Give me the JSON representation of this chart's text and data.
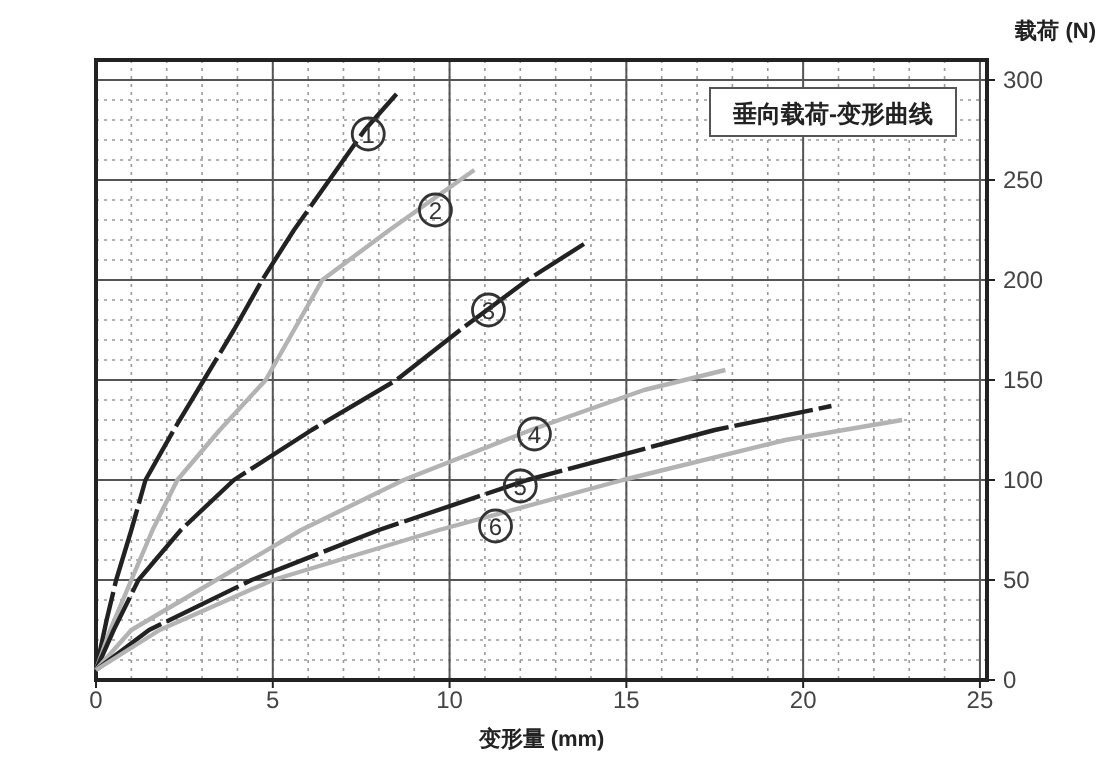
{
  "chart_data": {
    "type": "line",
    "title": "垂向载荷-变形曲线",
    "xlabel": "变形量 (mm)",
    "ylabel": "载荷 (N)",
    "xlim": [
      0,
      25.2
    ],
    "ylim": [
      0,
      310
    ],
    "xticks": [
      0,
      5,
      10,
      15,
      20,
      25
    ],
    "yticks": [
      0,
      50,
      100,
      150,
      200,
      250,
      300
    ],
    "grid": true,
    "series": [
      {
        "color": "#222222",
        "line_style": "dashed",
        "x": [
          0,
          0.3,
          0.57,
          1.0,
          1.4,
          2.2,
          3.05,
          3.9,
          4.7,
          5.6,
          6.6,
          7.6,
          8.5
        ],
        "values": [
          5,
          30,
          50,
          75,
          100,
          125,
          150,
          175,
          200,
          225,
          250,
          275,
          293
        ]
      },
      {
        "color": "#b3b3b3",
        "line_style": "solid",
        "x": [
          0,
          0.4,
          1.0,
          1.6,
          2.3,
          3.5,
          4.8,
          5.6,
          6.4,
          8.3,
          10.3,
          10.7
        ],
        "values": [
          5,
          25,
          50,
          75,
          100,
          125,
          150,
          175,
          200,
          225,
          250,
          255
        ]
      },
      {
        "color": "#222222",
        "line_style": "dashed",
        "x": [
          0,
          0.5,
          1.2,
          2.4,
          3.9,
          6.1,
          8.5,
          10.3,
          12.2,
          13.8
        ],
        "values": [
          5,
          25,
          50,
          75,
          100,
          125,
          150,
          175,
          200,
          218
        ]
      },
      {
        "color": "#b3b3b3",
        "line_style": "solid",
        "x": [
          0,
          1,
          3.4,
          5.8,
          8.7,
          12.3,
          15.5,
          17.8
        ],
        "values": [
          5,
          25,
          50,
          75,
          100,
          125,
          145,
          155
        ]
      },
      {
        "color": "#222222",
        "line_style": "dashed",
        "x": [
          0,
          1.5,
          4.4,
          8.0,
          12.2,
          17.5,
          20.8
        ],
        "values": [
          5,
          25,
          50,
          75,
          100,
          125,
          137
        ]
      },
      {
        "color": "#b3b3b3",
        "line_style": "solid",
        "x": [
          0,
          1.8,
          5.0,
          9.7,
          14.9,
          19.5,
          22.8
        ],
        "values": [
          5,
          25,
          50,
          75,
          100,
          120,
          130
        ]
      }
    ],
    "annotations": [
      {
        "text": "1",
        "x": 7.7,
        "y": 273
      },
      {
        "text": "2",
        "x": 9.6,
        "y": 235
      },
      {
        "text": "3",
        "x": 11.1,
        "y": 185
      },
      {
        "text": "4",
        "x": 12.4,
        "y": 123
      },
      {
        "text": "5",
        "x": 12.0,
        "y": 97
      },
      {
        "text": "6",
        "x": 11.3,
        "y": 77
      }
    ]
  }
}
